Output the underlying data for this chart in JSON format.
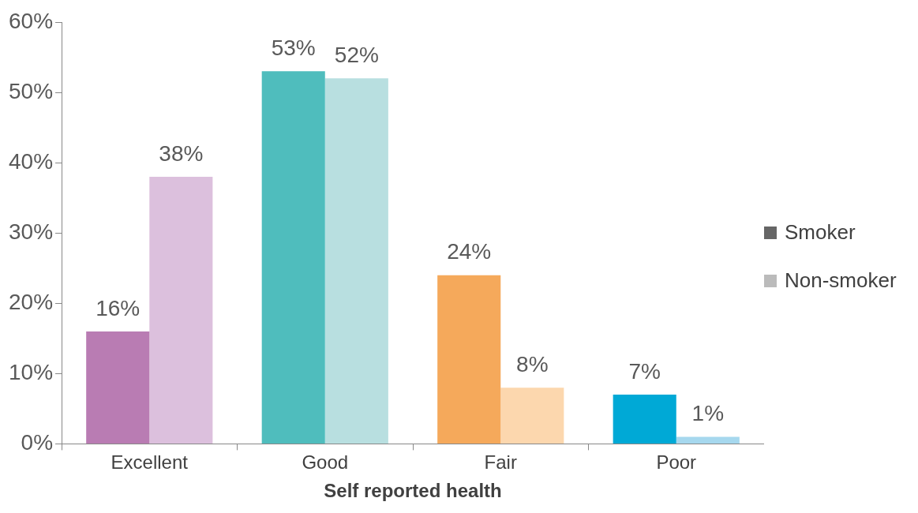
{
  "chart_data": {
    "type": "bar",
    "xlabel": "Self reported health",
    "categories": [
      "Excellent",
      "Good",
      "Fair",
      "Poor"
    ],
    "series": [
      {
        "name": "Smoker",
        "color": "#666666",
        "colors": [
          "#b97cb3",
          "#4fbdbd",
          "#f5a95b",
          "#00a9d6"
        ],
        "values": [
          16,
          53,
          24,
          7
        ],
        "value_labels": [
          "16%",
          "53%",
          "24%",
          "7%"
        ]
      },
      {
        "name": "Non-smoker",
        "color": "#bbbbbb",
        "colors": [
          "#dcc0dd",
          "#b8dfe0",
          "#fcd7ae",
          "#a6d8ee"
        ],
        "values": [
          38,
          52,
          8,
          1
        ],
        "value_labels": [
          "38%",
          "52%",
          "8%",
          "1%"
        ]
      }
    ],
    "ylim": [
      0,
      60
    ],
    "yticks": [
      {
        "value": 0,
        "label": "0%"
      },
      {
        "value": 10,
        "label": "10%"
      },
      {
        "value": 20,
        "label": "20%"
      },
      {
        "value": 30,
        "label": "30%"
      },
      {
        "value": 40,
        "label": "40%"
      },
      {
        "value": 50,
        "label": "50%"
      },
      {
        "value": 60,
        "label": "60%"
      }
    ],
    "grid": false,
    "legend": "right"
  }
}
